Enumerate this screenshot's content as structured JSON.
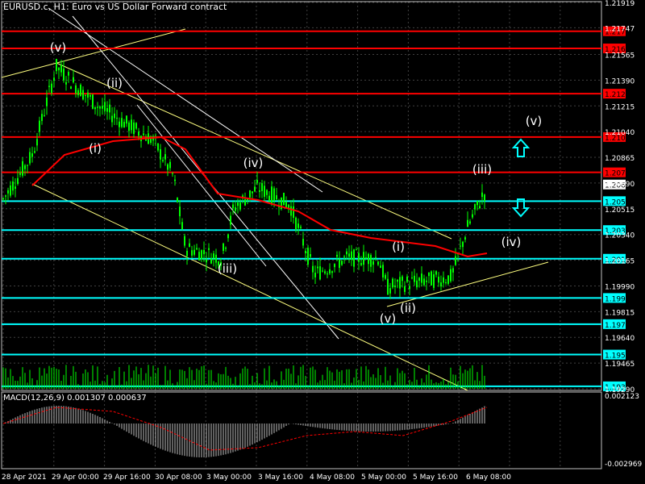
{
  "window_title": "EURUSD.c, H1:  Euro vs US Dollar Forward contract",
  "macd_title": "MACD(12,26,9) 0.001307 0.000637",
  "colors": {
    "background": "#000000",
    "candles": "#00ff00",
    "moving_average": "#ff0000",
    "resistance": "#ff0000",
    "support": "#00ffff",
    "channel": "#ffff80",
    "channel_inner": "#ffffff",
    "wave_label": "#ffffff",
    "macd_hist": "#c0c0c0",
    "macd_signal": "#ff0000",
    "price_tag_red": "#ff0000",
    "price_tag_cyan": "#00ffff"
  },
  "chart_data": {
    "type": "candlestick",
    "symbol": "EURUSD.c",
    "timeframe": "H1",
    "price_axis_ticks": [
      "1.21919",
      "1.21747",
      "1.21565",
      "1.21390",
      "1.21215",
      "1.21040",
      "1.20865",
      "1.20690",
      "1.20515",
      "1.20340",
      "1.20165",
      "1.19990",
      "1.19815",
      "1.19640",
      "1.19465",
      "1.19290"
    ],
    "time_axis_labels": [
      "28 Apr 2021",
      "29 Apr 00:00",
      "29 Apr 16:00",
      "30 Apr 08:00",
      "3 May 00:00",
      "3 May 16:00",
      "4 May 08:00",
      "5 May 00:00",
      "5 May 16:00",
      "6 May 08:00"
    ],
    "horizontal_levels": [
      {
        "price": "1.21723",
        "kind": "resistance"
      },
      {
        "price": "1.21606",
        "kind": "resistance"
      },
      {
        "price": "1.21298",
        "kind": "resistance"
      },
      {
        "price": "1.21003",
        "kind": "resistance"
      },
      {
        "price": "1.20763",
        "kind": "resistance"
      },
      {
        "price": "1.20567",
        "kind": "support"
      },
      {
        "price": "1.20370",
        "kind": "support"
      },
      {
        "price": "1.20175",
        "kind": "support"
      },
      {
        "price": "1.19908",
        "kind": "support"
      },
      {
        "price": "1.19730",
        "kind": "support"
      },
      {
        "price": "1.19523",
        "kind": "support"
      },
      {
        "price": "1.19307",
        "kind": "support"
      }
    ],
    "current_price": "1.20680",
    "wave_labels": [
      "(v)",
      "(ii)",
      "(i)",
      "(iv)",
      "(iii)",
      "(i)",
      "(ii)",
      "(v)",
      "(iii)",
      "(v)",
      "(iv)"
    ],
    "macd": {
      "params": "12,26,9",
      "value": 0.001307,
      "signal": 0.000637,
      "axis_ticks": [
        "0.002123",
        "-0.002969"
      ]
    }
  }
}
